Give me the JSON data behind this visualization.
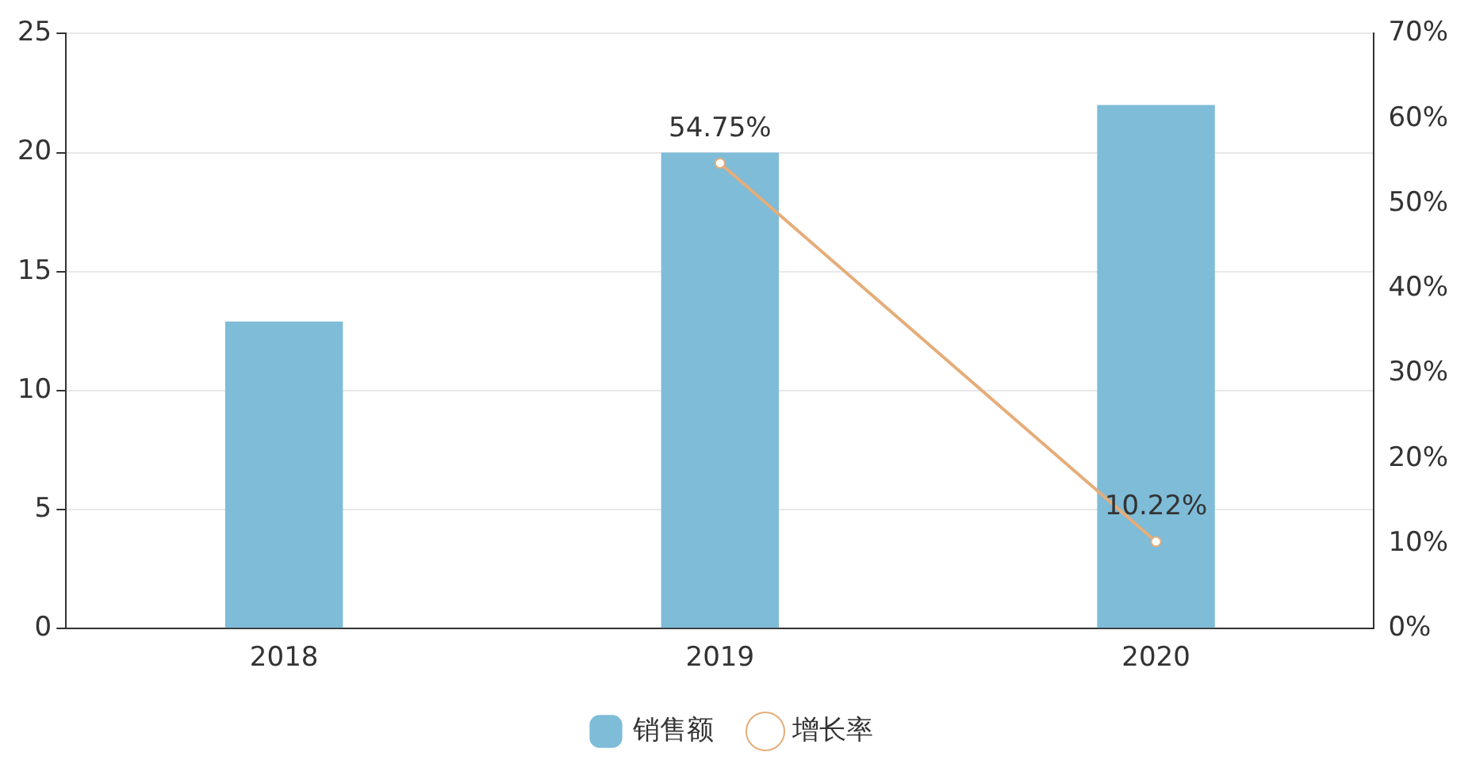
{
  "chart_data": {
    "type": "bar",
    "categories": [
      "2018",
      "2019",
      "2020"
    ],
    "series": [
      {
        "name": "销售额",
        "color": "#7ebcd8",
        "values": [
          12.9,
          20,
          22
        ]
      },
      {
        "name": "增长率",
        "type": "line",
        "axis": "y2",
        "color": "#e5ad7a",
        "marker": "circle",
        "values": [
          null,
          54.75,
          10.22
        ],
        "value_labels": [
          null,
          "54.75%",
          "10.22%"
        ]
      }
    ],
    "ylim": [
      0,
      25
    ],
    "yticks": [
      0,
      5,
      10,
      15,
      20,
      25
    ],
    "y2lim": [
      0,
      70
    ],
    "y2ticks": [
      {
        "value": 0,
        "label": "0%"
      },
      {
        "value": 10,
        "label": "10%"
      },
      {
        "value": 20,
        "label": "20%"
      },
      {
        "value": 30,
        "label": "30%"
      },
      {
        "value": 40,
        "label": "40%"
      },
      {
        "value": 50,
        "label": "50%"
      },
      {
        "value": 60,
        "label": "60%"
      },
      {
        "value": 70,
        "label": "70%"
      }
    ],
    "grid": "y",
    "legend": "bottom"
  }
}
